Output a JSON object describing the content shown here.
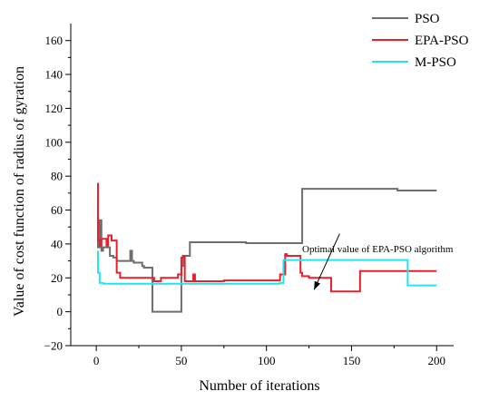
{
  "chart_data": {
    "type": "line",
    "xlabel": "Number of iterations",
    "ylabel": "Value of cost function of radius of gyration",
    "xlim": [
      -15,
      210
    ],
    "ylim": [
      -20,
      170
    ],
    "xticks": [
      0,
      50,
      100,
      150,
      200
    ],
    "yticks": [
      -20,
      0,
      20,
      40,
      60,
      80,
      100,
      120,
      140,
      160
    ],
    "xtick_labels": [
      "0",
      "50",
      "100",
      "150",
      "200"
    ],
    "ytick_labels": [
      "−20",
      "0",
      "20",
      "40",
      "60",
      "80",
      "100",
      "120",
      "140",
      "160"
    ],
    "legend_position": "top-right",
    "grid": false,
    "series": [
      {
        "name": "PSO",
        "color": "#6e6e6e",
        "x": [
          1,
          1,
          2,
          2,
          3,
          3,
          4,
          4,
          8,
          8,
          10,
          10,
          12,
          12,
          20,
          20,
          21,
          21,
          22,
          22,
          27,
          27,
          28,
          28,
          33,
          33,
          50,
          50,
          51,
          51,
          55,
          55,
          88,
          88,
          121,
          121,
          177,
          177,
          200
        ],
        "y": [
          45,
          38,
          38,
          54,
          54,
          36,
          36,
          38,
          38,
          33,
          33,
          32,
          32,
          30,
          30,
          36,
          36,
          30,
          30,
          29,
          29,
          27,
          27,
          26,
          26,
          0,
          0,
          27,
          27,
          33,
          33,
          41,
          41,
          40.5,
          40.5,
          72.5,
          72.5,
          71.5,
          71.5
        ]
      },
      {
        "name": "EPA-PSO",
        "color": "#e8202a",
        "x": [
          1,
          1,
          2,
          2,
          3,
          3,
          6,
          6,
          7,
          7,
          9,
          9,
          12,
          12,
          14,
          14,
          34,
          34,
          38,
          38,
          48,
          48,
          50,
          50,
          51,
          51,
          52,
          52,
          57,
          57,
          58,
          58,
          61,
          61,
          75,
          75,
          108,
          108,
          111,
          111,
          112,
          112,
          120,
          120,
          121,
          121,
          125,
          125,
          138,
          138,
          140,
          140,
          155,
          155,
          157,
          157,
          200
        ],
        "y": [
          76,
          42,
          42,
          39,
          39,
          43,
          43,
          39,
          39,
          45,
          45,
          42,
          42,
          23,
          23,
          20,
          20,
          18,
          18,
          20,
          20,
          22,
          22,
          32,
          32,
          33,
          33,
          18,
          18,
          22,
          22,
          18,
          18,
          18,
          18,
          18.5,
          18.5,
          22,
          22,
          34,
          34,
          33,
          33,
          23,
          23,
          21,
          21,
          20,
          20,
          12,
          12,
          12,
          12,
          24,
          24,
          24,
          24
        ]
      },
      {
        "name": "M-PSO",
        "color": "#22e6ee",
        "x": [
          1,
          1,
          2,
          2,
          4,
          4,
          108,
          108,
          110,
          110,
          183,
          183,
          200
        ],
        "y": [
          36,
          23,
          23,
          17,
          17,
          16.5,
          16.5,
          17,
          17,
          30.5,
          30.5,
          15.5,
          15.5
        ]
      }
    ],
    "annotations": [
      {
        "text": "Optimal value of EPA-PSO algorithm",
        "arrow_from": [
          143,
          46
        ],
        "arrow_to": [
          128,
          13
        ]
      }
    ]
  }
}
